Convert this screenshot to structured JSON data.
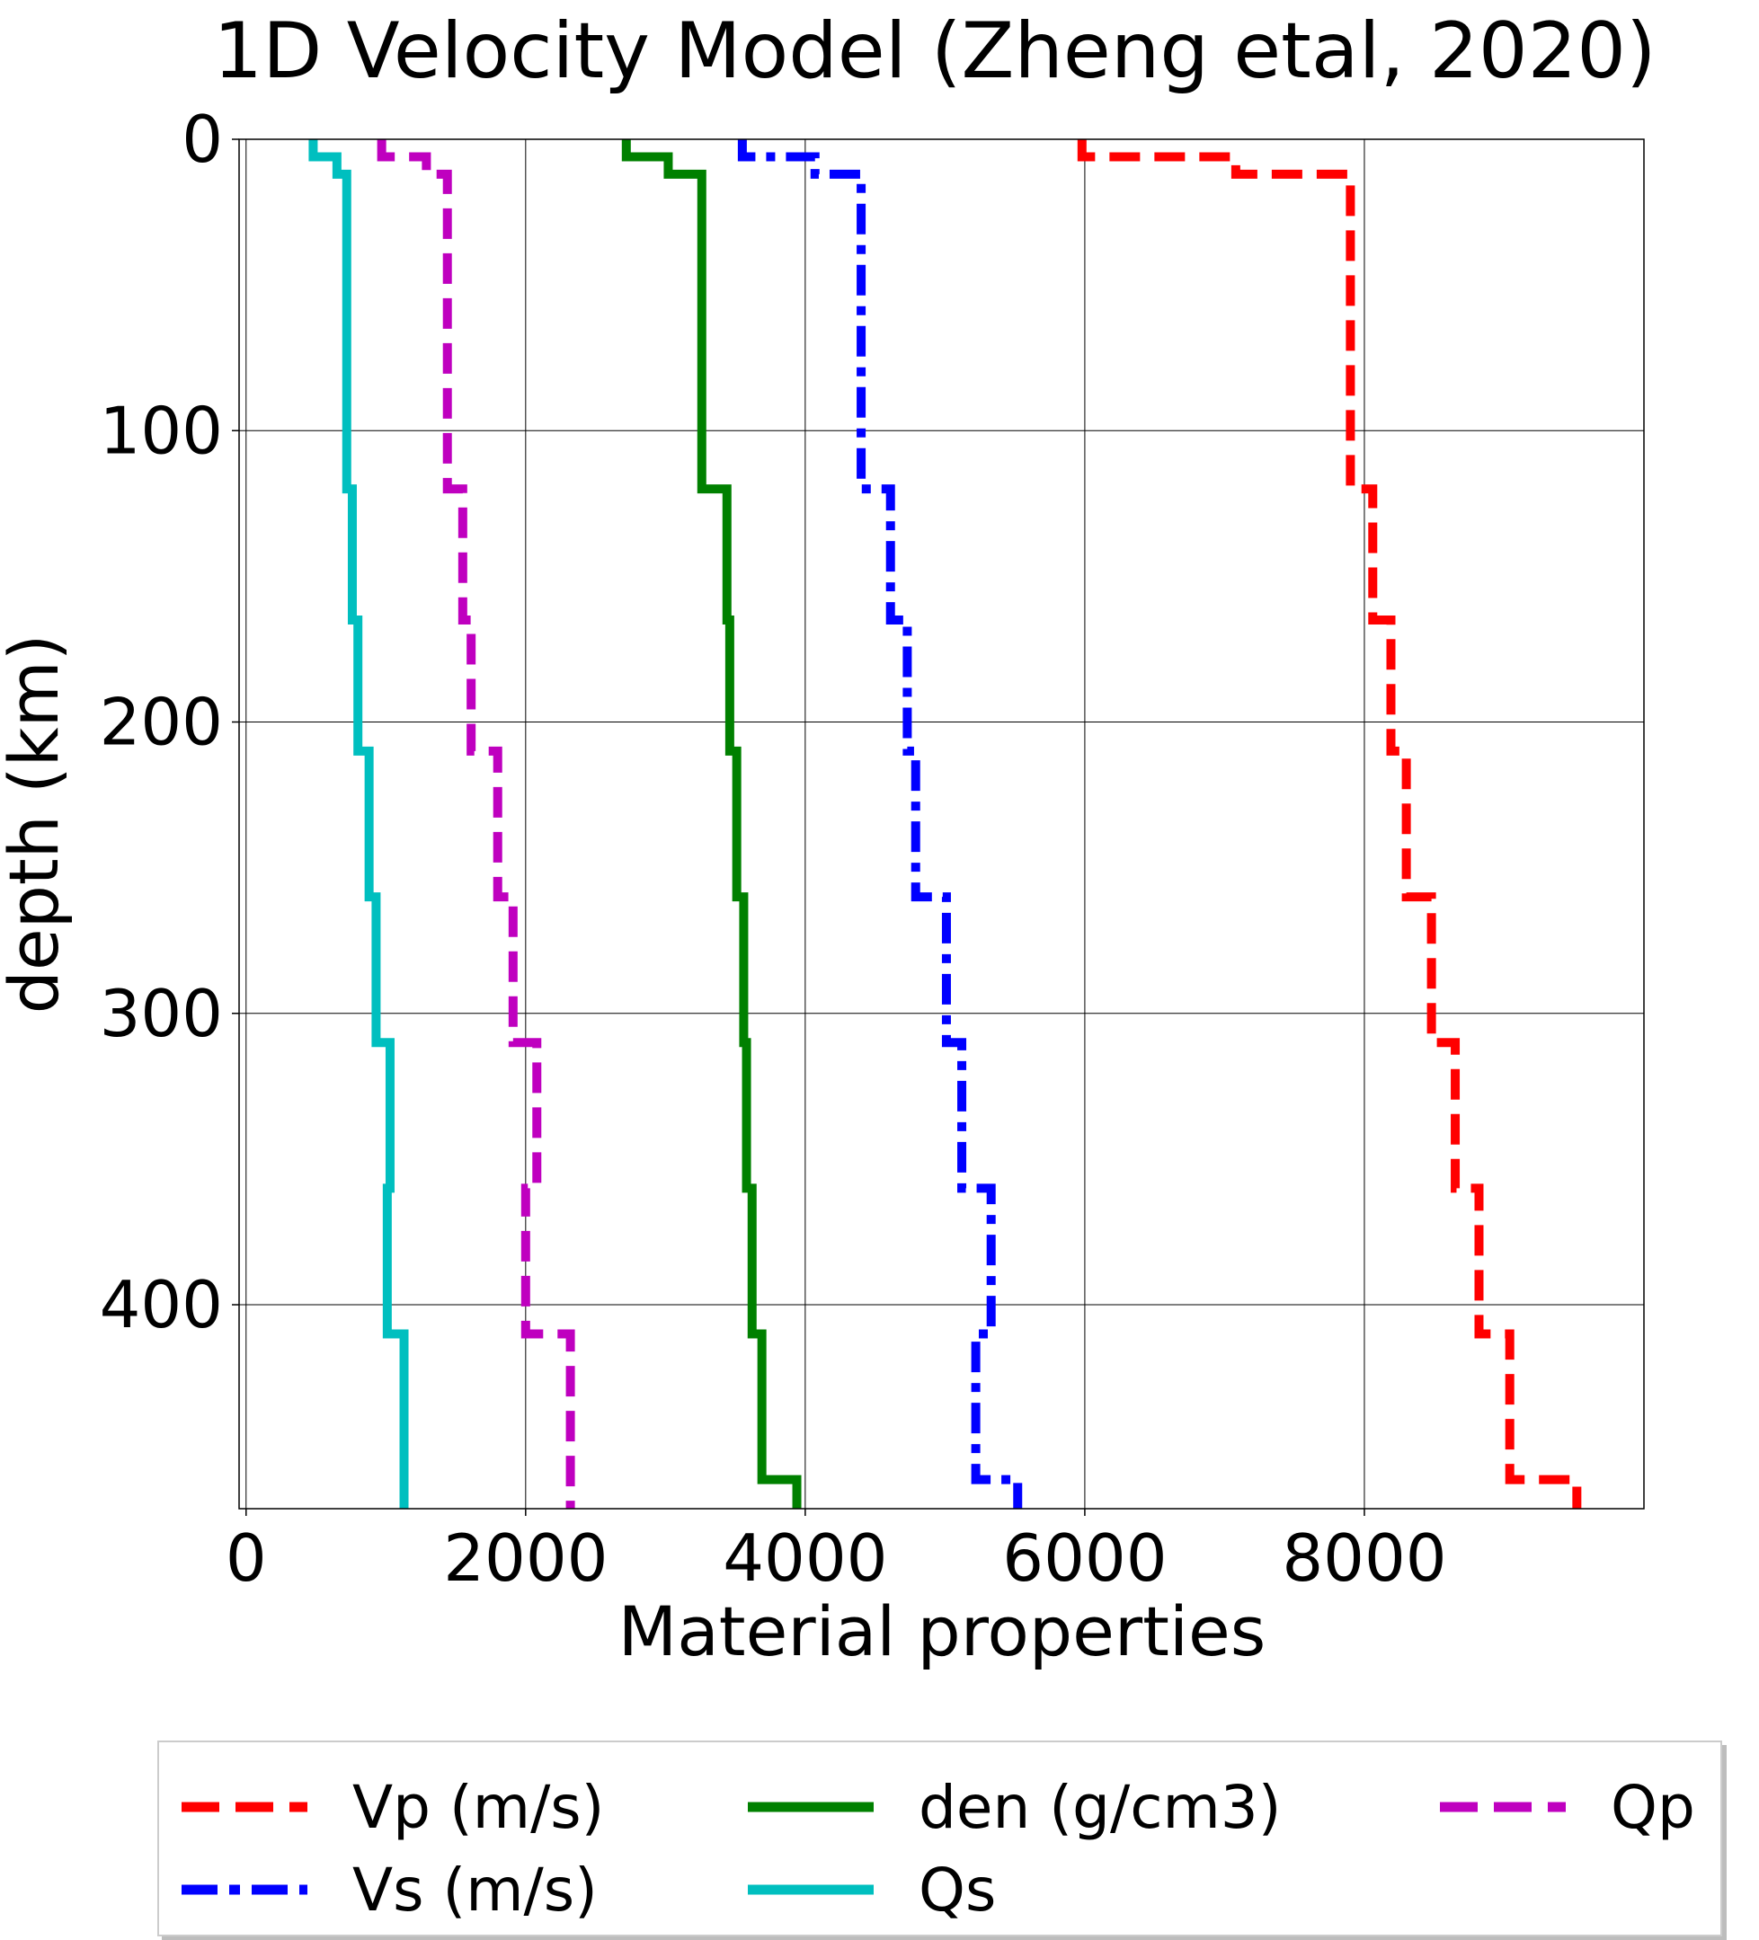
{
  "chart_data": {
    "type": "line",
    "title": "1D Velocity Model (Zheng etal, 2020)",
    "xlabel": "Material properties",
    "ylabel": "depth (km)",
    "xlim": [
      -50,
      10000
    ],
    "ylim": [
      470,
      0
    ],
    "y_inverted": true,
    "grid": true,
    "x_ticks": [
      0,
      2000,
      4000,
      6000,
      8000
    ],
    "x_tick_labels": [
      "0",
      "2000",
      "4000",
      "6000",
      "8000"
    ],
    "y_ticks": [
      0,
      100,
      200,
      300,
      400
    ],
    "y_tick_labels": [
      "0",
      "100",
      "200",
      "300",
      "400"
    ],
    "legend_position": "below",
    "layer_tops_km": [
      0,
      6,
      12,
      120,
      165,
      210,
      260,
      310,
      360,
      410,
      460,
      470
    ],
    "series": [
      {
        "name": "Vp (m/s)",
        "color": "#ff0000",
        "style": "dashed",
        "values": [
          5980,
          7080,
          7900,
          8060,
          8190,
          8300,
          8480,
          8650,
          8820,
          9040,
          9520
        ]
      },
      {
        "name": "Vs (m/s)",
        "color": "#0000ff",
        "style": "dashdot",
        "values": [
          3550,
          4070,
          4400,
          4610,
          4730,
          4790,
          5010,
          5120,
          5330,
          5220,
          5520
        ]
      },
      {
        "name": "den (g/cm3)",
        "color": "#008000",
        "style": "solid",
        "values": [
          2720,
          3020,
          3260,
          3440,
          3460,
          3510,
          3560,
          3580,
          3620,
          3690,
          3940
        ]
      },
      {
        "name": "Qs",
        "color": "#00bfbf",
        "style": "solid",
        "values": [
          480,
          650,
          720,
          760,
          800,
          880,
          930,
          1030,
          1010,
          1130,
          1130
        ]
      },
      {
        "name": "Qp",
        "color": "#bf00bf",
        "style": "dashed",
        "values": [
          970,
          1290,
          1440,
          1550,
          1610,
          1800,
          1910,
          2080,
          2000,
          2320,
          2320
        ]
      }
    ]
  }
}
